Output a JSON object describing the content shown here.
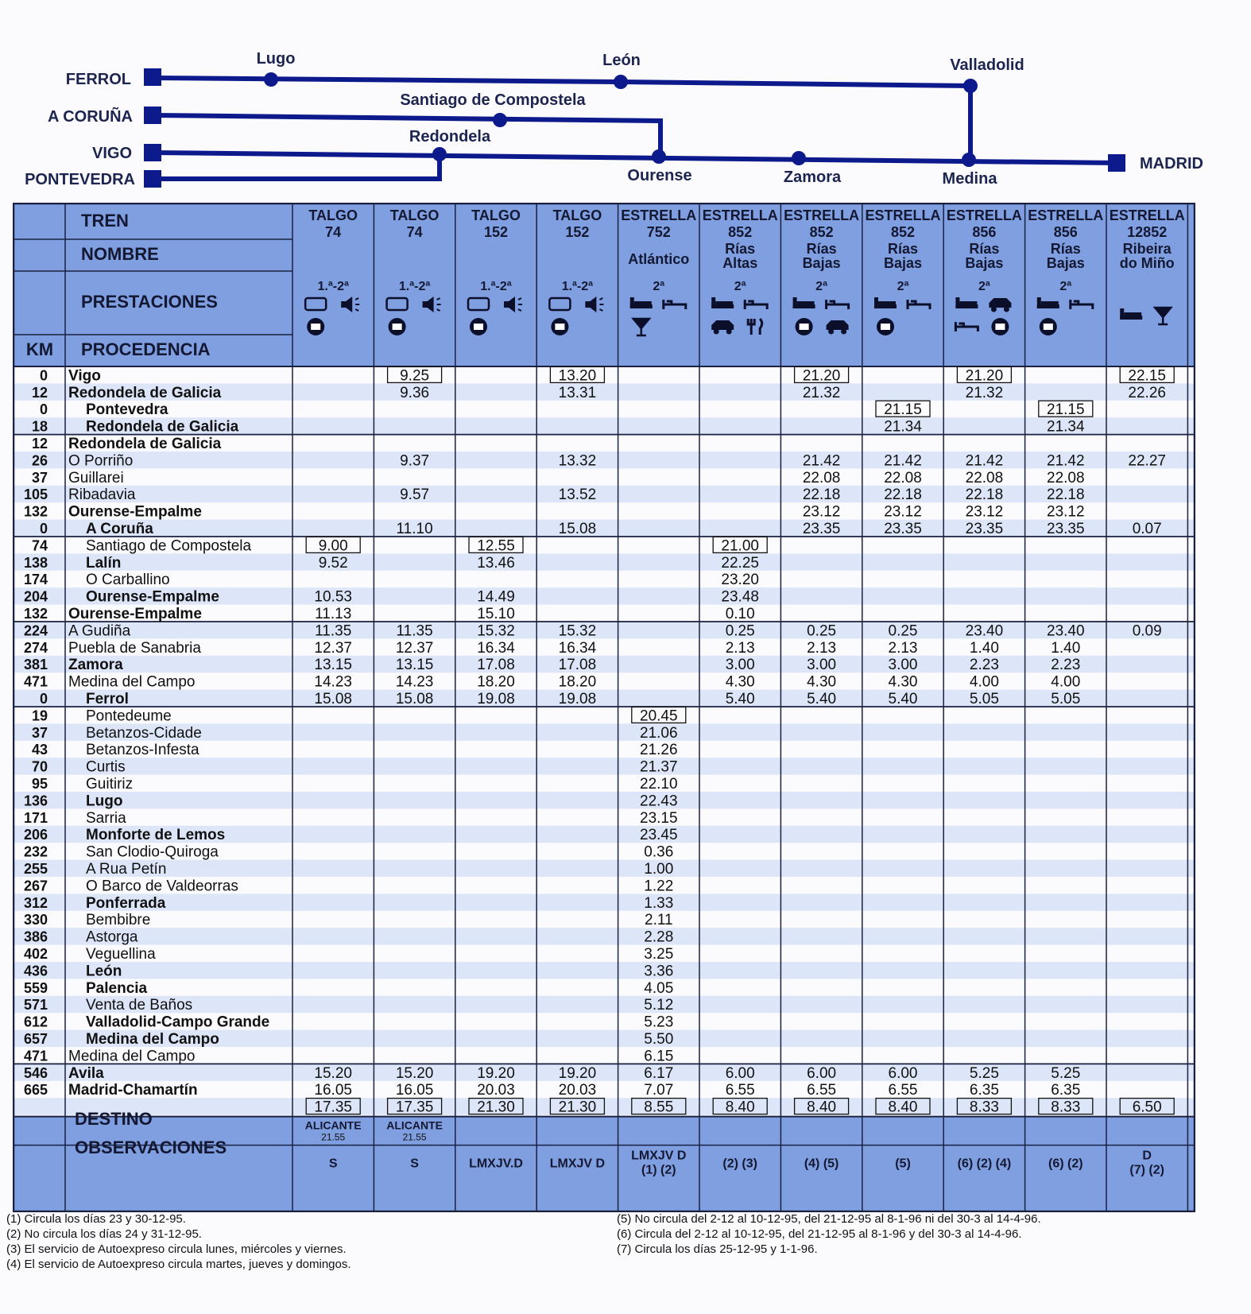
{
  "route_map": {
    "stations": {
      "ferrol": "FERROL",
      "a_coruna": "A CORUÑA",
      "vigo": "VIGO",
      "pontevedra": "PONTEVEDRA",
      "lugo": "Lugo",
      "leon": "León",
      "valladolid": "Valladolid",
      "santiago": "Santiago de Compostela",
      "redondela": "Redondela",
      "ourense": "Ourense",
      "zamora": "Zamora",
      "medina": "Medina",
      "madrid": "MADRID"
    },
    "line_color": "#0d1a8c"
  },
  "table": {
    "header_color": "#7f9fe0",
    "stripe_color": "#dde6f8",
    "labels": {
      "tren": "TREN",
      "nombre": "NOMBRE",
      "prestaciones": "PRESTACIONES",
      "km": "KM",
      "procedencia": "PROCEDENCIA",
      "destino": "DESTINO",
      "observaciones": "OBSERVACIONES"
    },
    "trains": [
      {
        "type": "TALGO",
        "number": "74",
        "name": "",
        "class": "1.ª-2ª",
        "services": [
          "seat",
          "audio",
          "video"
        ],
        "destino": "ALICANTE",
        "destino_time": "21.55",
        "obs": "S"
      },
      {
        "type": "TALGO",
        "number": "74",
        "name": "",
        "class": "1.ª-2ª",
        "services": [
          "seat",
          "audio",
          "video"
        ],
        "destino": "ALICANTE",
        "destino_time": "21.55",
        "obs": "S"
      },
      {
        "type": "TALGO",
        "number": "152",
        "name": "",
        "class": "1.ª-2ª",
        "services": [
          "seat",
          "audio",
          "video"
        ],
        "destino": "",
        "destino_time": "",
        "obs": "LMXJV.D"
      },
      {
        "type": "TALGO",
        "number": "152",
        "name": "",
        "class": "1.ª-2ª",
        "services": [
          "seat",
          "audio",
          "video"
        ],
        "destino": "",
        "destino_time": "",
        "obs": "LMXJV D"
      },
      {
        "type": "ESTRELLA",
        "number": "752",
        "name": "Atlántico",
        "class": "2ª",
        "services": [
          "couchette",
          "sleeper",
          "bar"
        ],
        "destino": "",
        "destino_time": "",
        "obs": "LMXJV D\n(1) (2)"
      },
      {
        "type": "ESTRELLA",
        "number": "852",
        "name": "Rías\nAltas",
        "class": "2ª",
        "services": [
          "couchette",
          "sleeper",
          "autoexpreso",
          "restaurant"
        ],
        "destino": "",
        "destino_time": "",
        "obs": "(2) (3)"
      },
      {
        "type": "ESTRELLA",
        "number": "852",
        "name": "Rías\nBajas",
        "class": "2ª",
        "services": [
          "couchette",
          "sleeper",
          "video",
          "autoexpreso"
        ],
        "destino": "",
        "destino_time": "",
        "obs": "(4) (5)"
      },
      {
        "type": "ESTRELLA",
        "number": "852",
        "name": "Rías\nBajas",
        "class": "2ª",
        "services": [
          "couchette",
          "sleeper",
          "video"
        ],
        "destino": "",
        "destino_time": "",
        "obs": "(5)"
      },
      {
        "type": "ESTRELLA",
        "number": "856",
        "name": "Rías\nBajas",
        "class": "2ª",
        "services": [
          "couchette",
          "autoexpreso",
          "sleeper",
          "video"
        ],
        "destino": "",
        "destino_time": "",
        "obs": "(6) (2) (4)"
      },
      {
        "type": "ESTRELLA",
        "number": "856",
        "name": "Rías\nBajas",
        "class": "2ª",
        "services": [
          "couchette",
          "sleeper",
          "video"
        ],
        "destino": "",
        "destino_time": "",
        "obs": "(6) (2)"
      },
      {
        "type": "ESTRELLA",
        "number": "12852",
        "name": "Ribeira\ndo Miño",
        "class": "",
        "services": [
          "couchette",
          "bar"
        ],
        "destino": "",
        "destino_time": "",
        "obs": "D\n(7) (2)"
      }
    ],
    "rows": [
      {
        "km": "0",
        "station": "Vigo",
        "bold": true,
        "indent": 0,
        "times": [
          "",
          "9.25*",
          "",
          "13.20*",
          "",
          "",
          "21.20*",
          "",
          "21.20*",
          "",
          "22.15*"
        ]
      },
      {
        "km": "12",
        "station": "Redondela de Galicia",
        "bold": true,
        "indent": 0,
        "times": [
          "",
          "9.36",
          "",
          "13.31",
          "",
          "",
          "21.32",
          "",
          "21.32",
          "",
          "22.26"
        ]
      },
      {
        "km": "0",
        "station": "Pontevedra",
        "bold": true,
        "indent": 1,
        "times": [
          "",
          "",
          "",
          "",
          "",
          "",
          "",
          "21.15*",
          "",
          "21.15*",
          ""
        ]
      },
      {
        "km": "18",
        "station": "Redondela de Galicia",
        "bold": true,
        "indent": 1,
        "times": [
          "",
          "",
          "",
          "",
          "",
          "",
          "",
          "21.34",
          "",
          "21.34",
          ""
        ]
      },
      {
        "km": "12",
        "station": "Redondela de Galicia",
        "bold": true,
        "indent": 0,
        "times": [
          "",
          "",
          "",
          "",
          "",
          "",
          "",
          "",
          "",
          "",
          ""
        ]
      },
      {
        "km": "26",
        "station": "O Porriño",
        "bold": false,
        "indent": 0,
        "times": [
          "",
          "9.37",
          "",
          "13.32",
          "",
          "",
          "21.42",
          "21.42",
          "21.42",
          "21.42",
          "22.27"
        ]
      },
      {
        "km": "37",
        "station": "Guillarei",
        "bold": false,
        "indent": 0,
        "times": [
          "",
          "",
          "",
          "",
          "",
          "",
          "22.08",
          "22.08",
          "22.08",
          "22.08",
          ""
        ]
      },
      {
        "km": "105",
        "station": "Ribadavia",
        "bold": false,
        "indent": 0,
        "times": [
          "",
          "9.57",
          "",
          "13.52",
          "",
          "",
          "22.18",
          "22.18",
          "22.18",
          "22.18",
          ""
        ]
      },
      {
        "km": "132",
        "station": "Ourense-Empalme",
        "bold": true,
        "indent": 0,
        "times": [
          "",
          "",
          "",
          "",
          "",
          "",
          "23.12",
          "23.12",
          "23.12",
          "23.12",
          ""
        ]
      },
      {
        "km": "0",
        "station": "A Coruña",
        "bold": true,
        "indent": 1,
        "times": [
          "",
          "11.10",
          "",
          "15.08",
          "",
          "",
          "23.35",
          "23.35",
          "23.35",
          "23.35",
          "0.07"
        ]
      },
      {
        "km": "74",
        "station": "Santiago de Compostela",
        "bold": false,
        "indent": 1,
        "times": [
          "9.00*",
          "",
          "12.55*",
          "",
          "",
          "21.00*",
          "",
          "",
          "",
          "",
          ""
        ]
      },
      {
        "km": "138",
        "station": "Lalín",
        "bold": true,
        "indent": 1,
        "times": [
          "9.52",
          "",
          "13.46",
          "",
          "",
          "22.25",
          "",
          "",
          "",
          "",
          ""
        ]
      },
      {
        "km": "174",
        "station": "O Carballino",
        "bold": false,
        "indent": 1,
        "times": [
          "",
          "",
          "",
          "",
          "",
          "23.20",
          "",
          "",
          "",
          "",
          ""
        ]
      },
      {
        "km": "204",
        "station": "Ourense-Empalme",
        "bold": true,
        "indent": 1,
        "times": [
          "10.53",
          "",
          "14.49",
          "",
          "",
          "23.48",
          "",
          "",
          "",
          "",
          ""
        ]
      },
      {
        "km": "132",
        "station": "Ourense-Empalme",
        "bold": true,
        "indent": 0,
        "times": [
          "11.13",
          "",
          "15.10",
          "",
          "",
          "0.10",
          "",
          "",
          "",
          "",
          ""
        ]
      },
      {
        "km": "224",
        "station": "A Gudiña",
        "bold": false,
        "indent": 0,
        "times": [
          "11.35",
          "11.35",
          "15.32",
          "15.32",
          "",
          "0.25",
          "0.25",
          "0.25",
          "23.40",
          "23.40",
          "0.09"
        ]
      },
      {
        "km": "274",
        "station": "Puebla de Sanabria",
        "bold": false,
        "indent": 0,
        "times": [
          "12.37",
          "12.37",
          "16.34",
          "16.34",
          "",
          "2.13",
          "2.13",
          "2.13",
          "1.40",
          "1.40",
          ""
        ]
      },
      {
        "km": "381",
        "station": "Zamora",
        "bold": true,
        "indent": 0,
        "times": [
          "13.15",
          "13.15",
          "17.08",
          "17.08",
          "",
          "3.00",
          "3.00",
          "3.00",
          "2.23",
          "2.23",
          ""
        ]
      },
      {
        "km": "471",
        "station": "Medina del Campo",
        "bold": false,
        "indent": 0,
        "times": [
          "14.23",
          "14.23",
          "18.20",
          "18.20",
          "",
          "4.30",
          "4.30",
          "4.30",
          "4.00",
          "4.00",
          ""
        ]
      },
      {
        "km": "0",
        "station": "Ferrol",
        "bold": true,
        "indent": 1,
        "times": [
          "15.08",
          "15.08",
          "19.08",
          "19.08",
          "",
          "5.40",
          "5.40",
          "5.40",
          "5.05",
          "5.05",
          ""
        ]
      },
      {
        "km": "19",
        "station": "Pontedeume",
        "bold": false,
        "indent": 1,
        "times": [
          "",
          "",
          "",
          "",
          "20.45*",
          "",
          "",
          "",
          "",
          "",
          ""
        ]
      },
      {
        "km": "37",
        "station": "Betanzos-Cidade",
        "bold": false,
        "indent": 1,
        "times": [
          "",
          "",
          "",
          "",
          "21.06",
          "",
          "",
          "",
          "",
          "",
          ""
        ]
      },
      {
        "km": "43",
        "station": "Betanzos-Infesta",
        "bold": false,
        "indent": 1,
        "times": [
          "",
          "",
          "",
          "",
          "21.26",
          "",
          "",
          "",
          "",
          "",
          ""
        ]
      },
      {
        "km": "70",
        "station": "Curtis",
        "bold": false,
        "indent": 1,
        "times": [
          "",
          "",
          "",
          "",
          "21.37",
          "",
          "",
          "",
          "",
          "",
          ""
        ]
      },
      {
        "km": "95",
        "station": "Guitiriz",
        "bold": false,
        "indent": 1,
        "times": [
          "",
          "",
          "",
          "",
          "22.10",
          "",
          "",
          "",
          "",
          "",
          ""
        ]
      },
      {
        "km": "136",
        "station": "Lugo",
        "bold": true,
        "indent": 1,
        "times": [
          "",
          "",
          "",
          "",
          "22.43",
          "",
          "",
          "",
          "",
          "",
          ""
        ]
      },
      {
        "km": "171",
        "station": "Sarria",
        "bold": false,
        "indent": 1,
        "times": [
          "",
          "",
          "",
          "",
          "23.15",
          "",
          "",
          "",
          "",
          "",
          ""
        ]
      },
      {
        "km": "206",
        "station": "Monforte de Lemos",
        "bold": true,
        "indent": 1,
        "times": [
          "",
          "",
          "",
          "",
          "23.45",
          "",
          "",
          "",
          "",
          "",
          ""
        ]
      },
      {
        "km": "232",
        "station": "San Clodio-Quiroga",
        "bold": false,
        "indent": 1,
        "times": [
          "",
          "",
          "",
          "",
          "0.36",
          "",
          "",
          "",
          "",
          "",
          ""
        ]
      },
      {
        "km": "255",
        "station": "A Rua Petín",
        "bold": false,
        "indent": 1,
        "times": [
          "",
          "",
          "",
          "",
          "1.00",
          "",
          "",
          "",
          "",
          "",
          ""
        ]
      },
      {
        "km": "267",
        "station": "O Barco de Valdeorras",
        "bold": false,
        "indent": 1,
        "times": [
          "",
          "",
          "",
          "",
          "1.22",
          "",
          "",
          "",
          "",
          "",
          ""
        ]
      },
      {
        "km": "312",
        "station": "Ponferrada",
        "bold": true,
        "indent": 1,
        "times": [
          "",
          "",
          "",
          "",
          "1.33",
          "",
          "",
          "",
          "",
          "",
          ""
        ]
      },
      {
        "km": "330",
        "station": "Bembibre",
        "bold": false,
        "indent": 1,
        "times": [
          "",
          "",
          "",
          "",
          "2.11",
          "",
          "",
          "",
          "",
          "",
          ""
        ]
      },
      {
        "km": "386",
        "station": "Astorga",
        "bold": false,
        "indent": 1,
        "times": [
          "",
          "",
          "",
          "",
          "2.28",
          "",
          "",
          "",
          "",
          "",
          ""
        ]
      },
      {
        "km": "402",
        "station": "Veguellina",
        "bold": false,
        "indent": 1,
        "times": [
          "",
          "",
          "",
          "",
          "3.25",
          "",
          "",
          "",
          "",
          "",
          ""
        ]
      },
      {
        "km": "436",
        "station": "León",
        "bold": true,
        "indent": 1,
        "times": [
          "",
          "",
          "",
          "",
          "3.36",
          "",
          "",
          "",
          "",
          "",
          ""
        ]
      },
      {
        "km": "559",
        "station": "Palencia",
        "bold": true,
        "indent": 1,
        "times": [
          "",
          "",
          "",
          "",
          "4.05",
          "",
          "",
          "",
          "",
          "",
          ""
        ]
      },
      {
        "km": "571",
        "station": "Venta de Baños",
        "bold": false,
        "indent": 1,
        "times": [
          "",
          "",
          "",
          "",
          "5.12",
          "",
          "",
          "",
          "",
          "",
          ""
        ]
      },
      {
        "km": "612",
        "station": "Valladolid-Campo Grande",
        "bold": true,
        "indent": 1,
        "times": [
          "",
          "",
          "",
          "",
          "5.23",
          "",
          "",
          "",
          "",
          "",
          ""
        ]
      },
      {
        "km": "657",
        "station": "Medina del Campo",
        "bold": true,
        "indent": 1,
        "times": [
          "",
          "",
          "",
          "",
          "5.50",
          "",
          "",
          "",
          "",
          "",
          ""
        ]
      },
      {
        "km": "471",
        "station": "Medina del Campo",
        "bold": false,
        "indent": 0,
        "times": [
          "",
          "",
          "",
          "",
          "6.15",
          "",
          "",
          "",
          "",
          "",
          ""
        ]
      },
      {
        "km": "546",
        "station": "Avila",
        "bold": true,
        "indent": 0,
        "times": [
          "15.20",
          "15.20",
          "19.20",
          "19.20",
          "6.17",
          "6.00",
          "6.00",
          "6.00",
          "5.25",
          "5.25",
          ""
        ]
      },
      {
        "km": "665",
        "station": "Madrid-Chamartín",
        "bold": true,
        "indent": 0,
        "times": [
          "16.05",
          "16.05",
          "20.03",
          "20.03",
          "7.07",
          "6.55",
          "6.55",
          "6.55",
          "6.35",
          "6.35",
          ""
        ]
      },
      {
        "km": "",
        "station": "",
        "bold": false,
        "indent": 0,
        "times": [
          "17.35*",
          "17.35*",
          "21.30*",
          "21.30*",
          "8.55*",
          "8.40*",
          "8.40*",
          "8.40*",
          "8.33*",
          "8.33*",
          "6.50*"
        ]
      }
    ]
  },
  "footnotes_left": [
    "(1) Circula los días 23 y 30-12-95.",
    "(2) No circula los días 24 y 31-12-95.",
    "(3) El servicio de Autoexpreso circula lunes, miércoles y viernes.",
    "(4) El servicio de Autoexpreso circula martes, jueves y domingos."
  ],
  "footnotes_right": [
    "(5) No circula del 2-12 al 10-12-95, del 21-12-95 al 8-1-96 ni del 30-3 al 14-4-96.",
    "(6) Circula del 2-12 al 10-12-95, del 21-12-95 al 8-1-96 y del 30-3 al 14-4-96.",
    "(7) Circula los días 25-12-95 y 1-1-96."
  ]
}
